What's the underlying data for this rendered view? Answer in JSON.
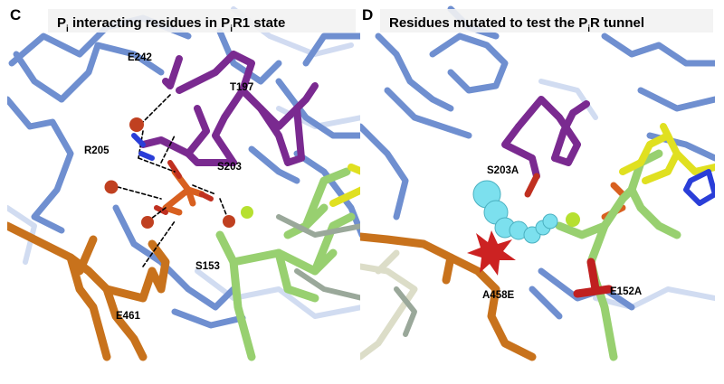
{
  "panel_c": {
    "letter": "C",
    "title": {
      "pre": "P",
      "sub1": "i",
      "mid": " interacting residues in P",
      "sub2": "i",
      "post": "R1 state"
    },
    "labels": {
      "e242": "E242",
      "t197": "T197",
      "r205": "R205",
      "s203": "S203",
      "s153": "S153",
      "e461": "E461"
    }
  },
  "panel_d": {
    "letter": "D",
    "title": {
      "pre": "Residues mutated to test the P",
      "sub": "i",
      "post": "R tunnel"
    },
    "labels": {
      "s203a": "S203A",
      "a458e": "A458E",
      "e152a": "E152A"
    }
  },
  "colors": {
    "blue_ribbon": "#6f8fd0",
    "purple_sticks": "#7a2a90",
    "orange_sticks": "#c8721c",
    "green_sticks": "#98d070",
    "yellow_sticks": "#e0e020",
    "water": "#c04020",
    "tunnel": "#7ce0ee",
    "star": "#cc2222"
  }
}
